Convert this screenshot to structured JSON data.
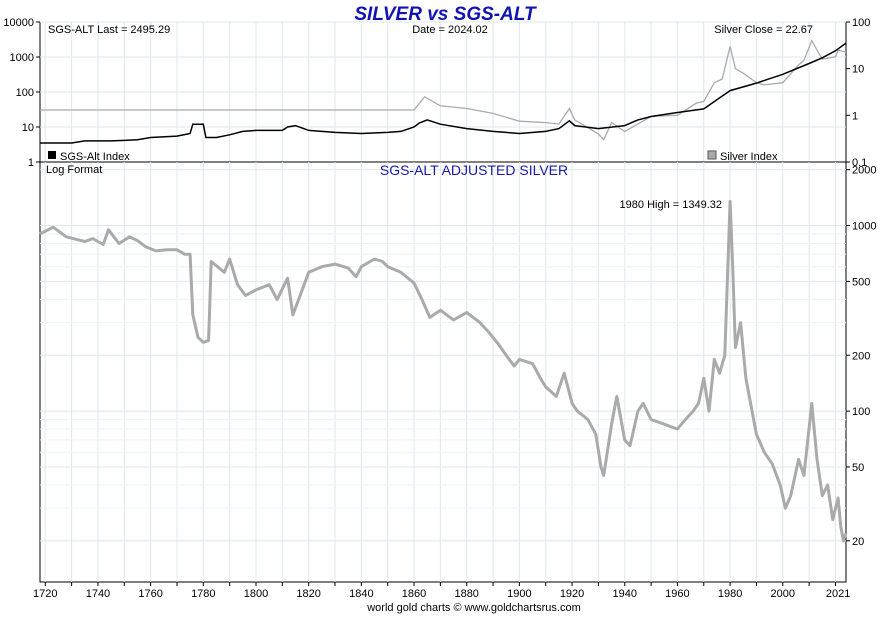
{
  "chart_data": [
    {
      "type": "line",
      "title": "SILVER vs SGS-ALT",
      "annotations": {
        "left": "SGS-ALT Last = 2495.29",
        "center": "Date = 2024.02",
        "right": "Silver Close = 22.67"
      },
      "legend": [
        {
          "name": "SGS-Alt Index",
          "color": "#000000",
          "placement": "bottom-left"
        },
        {
          "name": "Silver Index",
          "color": "#aaaaaa",
          "placement": "bottom-right"
        }
      ],
      "left_axis": {
        "scale": "log",
        "ticks": [
          "1",
          "10",
          "100",
          "1000",
          "10000"
        ],
        "range": [
          1,
          10000
        ]
      },
      "right_axis": {
        "scale": "log",
        "ticks": [
          "0.1",
          "1",
          "10",
          "100"
        ],
        "range": [
          0.1,
          100
        ]
      },
      "xlim": [
        1718,
        2024
      ],
      "series": [
        {
          "name": "SGS-Alt Index",
          "color": "#000000",
          "axis": "left",
          "points": [
            [
              1718,
              3.5
            ],
            [
              1730,
              3.5
            ],
            [
              1735,
              4.0
            ],
            [
              1745,
              4.0
            ],
            [
              1755,
              4.3
            ],
            [
              1760,
              5.0
            ],
            [
              1770,
              5.5
            ],
            [
              1775,
              6.5
            ],
            [
              1776,
              12
            ],
            [
              1780,
              12
            ],
            [
              1781,
              5.0
            ],
            [
              1785,
              5.0
            ],
            [
              1790,
              6.0
            ],
            [
              1795,
              7.5
            ],
            [
              1800,
              8.0
            ],
            [
              1805,
              8.0
            ],
            [
              1810,
              8.0
            ],
            [
              1812,
              10
            ],
            [
              1815,
              11
            ],
            [
              1820,
              8.0
            ],
            [
              1830,
              7.0
            ],
            [
              1840,
              6.5
            ],
            [
              1850,
              7.0
            ],
            [
              1855,
              7.5
            ],
            [
              1860,
              10
            ],
            [
              1862,
              13
            ],
            [
              1865,
              16
            ],
            [
              1870,
              12
            ],
            [
              1880,
              9.0
            ],
            [
              1890,
              7.5
            ],
            [
              1900,
              6.5
            ],
            [
              1910,
              7.5
            ],
            [
              1915,
              9.0
            ],
            [
              1919,
              15
            ],
            [
              1921,
              11
            ],
            [
              1930,
              9.0
            ],
            [
              1940,
              11
            ],
            [
              1945,
              16
            ],
            [
              1950,
              20
            ],
            [
              1960,
              26
            ],
            [
              1970,
              33
            ],
            [
              1975,
              60
            ],
            [
              1980,
              110
            ],
            [
              1990,
              180
            ],
            [
              2000,
              320
            ],
            [
              2010,
              650
            ],
            [
              2015,
              950
            ],
            [
              2020,
              1500
            ],
            [
              2024,
              2495.29
            ]
          ]
        },
        {
          "name": "Silver Index",
          "color": "#aaaaaa",
          "axis": "right",
          "points": [
            [
              1718,
              1.3
            ],
            [
              1760,
              1.3
            ],
            [
              1800,
              1.3
            ],
            [
              1860,
              1.3
            ],
            [
              1864,
              2.5
            ],
            [
              1870,
              1.6
            ],
            [
              1880,
              1.4
            ],
            [
              1890,
              1.1
            ],
            [
              1900,
              0.75
            ],
            [
              1910,
              0.7
            ],
            [
              1915,
              0.65
            ],
            [
              1919,
              1.4
            ],
            [
              1921,
              0.8
            ],
            [
              1930,
              0.4
            ],
            [
              1932,
              0.3
            ],
            [
              1935,
              0.7
            ],
            [
              1940,
              0.45
            ],
            [
              1950,
              0.95
            ],
            [
              1960,
              1.0
            ],
            [
              1967,
              1.8
            ],
            [
              1970,
              2.0
            ],
            [
              1974,
              5.0
            ],
            [
              1977,
              6.0
            ],
            [
              1980,
              30
            ],
            [
              1982,
              10
            ],
            [
              1985,
              8.0
            ],
            [
              1990,
              5.0
            ],
            [
              1993,
              4.5
            ],
            [
              2000,
              5.0
            ],
            [
              2006,
              12
            ],
            [
              2008,
              15
            ],
            [
              2011,
              40
            ],
            [
              2013,
              25
            ],
            [
              2015,
              16
            ],
            [
              2020,
              18
            ],
            [
              2021,
              25
            ],
            [
              2024,
              22.67
            ]
          ]
        }
      ]
    },
    {
      "type": "line",
      "title": "SGS-ALT ADJUSTED  SILVER",
      "note": "Log Format",
      "annotation": "1980 High = 1349.32",
      "footer": "world gold charts © www.goldchartsrus.com",
      "y_axis": {
        "scale": "log",
        "ticks": [
          "20",
          "50",
          "100",
          "200",
          "500",
          "1000",
          "2000"
        ],
        "range": [
          12,
          2200
        ]
      },
      "x_axis": {
        "ticks": [
          "1720",
          "1740",
          "1760",
          "1780",
          "1800",
          "1820",
          "1840",
          "1860",
          "1880",
          "1900",
          "1920",
          "1940",
          "1960",
          "1980",
          "2000",
          "2021"
        ],
        "range": [
          1718,
          2024
        ]
      },
      "grid": true,
      "series": [
        {
          "name": "SGS-ALT ADJUSTED  SILVER",
          "color": "#aaaaaa",
          "points": [
            [
              1718,
              900
            ],
            [
              1723,
              980
            ],
            [
              1728,
              870
            ],
            [
              1735,
              820
            ],
            [
              1738,
              850
            ],
            [
              1742,
              790
            ],
            [
              1744,
              950
            ],
            [
              1748,
              800
            ],
            [
              1752,
              870
            ],
            [
              1755,
              830
            ],
            [
              1758,
              770
            ],
            [
              1762,
              730
            ],
            [
              1766,
              740
            ],
            [
              1770,
              740
            ],
            [
              1773,
              700
            ],
            [
              1775,
              700
            ],
            [
              1776,
              330
            ],
            [
              1778,
              250
            ],
            [
              1780,
              235
            ],
            [
              1782,
              240
            ],
            [
              1783,
              640
            ],
            [
              1788,
              560
            ],
            [
              1790,
              660
            ],
            [
              1793,
              480
            ],
            [
              1796,
              420
            ],
            [
              1800,
              450
            ],
            [
              1805,
              480
            ],
            [
              1808,
              400
            ],
            [
              1812,
              520
            ],
            [
              1814,
              330
            ],
            [
              1817,
              430
            ],
            [
              1820,
              560
            ],
            [
              1825,
              600
            ],
            [
              1830,
              620
            ],
            [
              1835,
              590
            ],
            [
              1838,
              530
            ],
            [
              1840,
              600
            ],
            [
              1845,
              660
            ],
            [
              1848,
              640
            ],
            [
              1850,
              600
            ],
            [
              1855,
              560
            ],
            [
              1860,
              490
            ],
            [
              1863,
              400
            ],
            [
              1866,
              320
            ],
            [
              1870,
              350
            ],
            [
              1875,
              310
            ],
            [
              1880,
              340
            ],
            [
              1885,
              300
            ],
            [
              1888,
              270
            ],
            [
              1892,
              230
            ],
            [
              1895,
              200
            ],
            [
              1898,
              175
            ],
            [
              1900,
              190
            ],
            [
              1905,
              180
            ],
            [
              1908,
              150
            ],
            [
              1910,
              135
            ],
            [
              1914,
              120
            ],
            [
              1917,
              160
            ],
            [
              1920,
              110
            ],
            [
              1922,
              100
            ],
            [
              1926,
              90
            ],
            [
              1929,
              75
            ],
            [
              1931,
              50
            ],
            [
              1932,
              45
            ],
            [
              1935,
              85
            ],
            [
              1937,
              120
            ],
            [
              1940,
              70
            ],
            [
              1942,
              65
            ],
            [
              1945,
              100
            ],
            [
              1947,
              110
            ],
            [
              1950,
              90
            ],
            [
              1955,
              85
            ],
            [
              1960,
              80
            ],
            [
              1963,
              90
            ],
            [
              1966,
              100
            ],
            [
              1968,
              110
            ],
            [
              1970,
              150
            ],
            [
              1972,
              100
            ],
            [
              1974,
              190
            ],
            [
              1976,
              160
            ],
            [
              1978,
              200
            ],
            [
              1980,
              1349.32
            ],
            [
              1981,
              600
            ],
            [
              1982,
              220
            ],
            [
              1984,
              300
            ],
            [
              1986,
              150
            ],
            [
              1990,
              75
            ],
            [
              1993,
              60
            ],
            [
              1996,
              52
            ],
            [
              1999,
              40
            ],
            [
              2001,
              30
            ],
            [
              2003,
              35
            ],
            [
              2006,
              55
            ],
            [
              2008,
              45
            ],
            [
              2011,
              110
            ],
            [
              2013,
              55
            ],
            [
              2015,
              35
            ],
            [
              2017,
              40
            ],
            [
              2019,
              26
            ],
            [
              2020,
              30
            ],
            [
              2021,
              34
            ],
            [
              2022,
              24
            ],
            [
              2023,
              20
            ],
            [
              2024,
              22
            ]
          ]
        }
      ]
    }
  ]
}
